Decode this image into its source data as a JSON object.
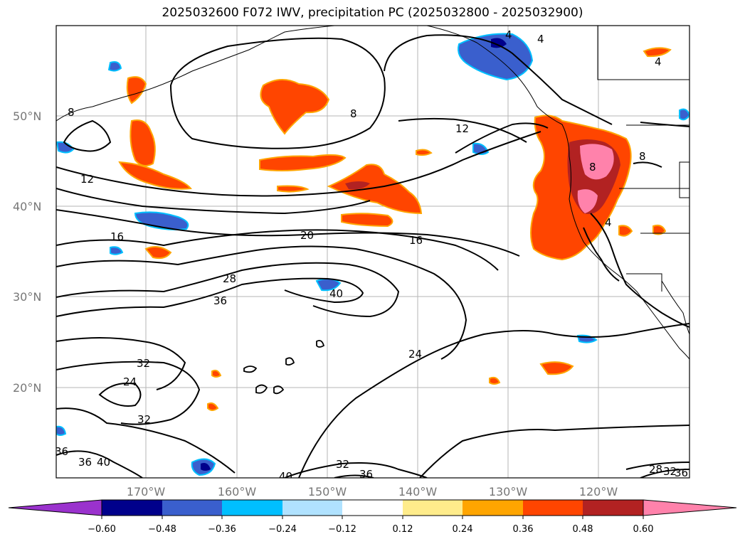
{
  "title": "2025032600 F072 IWV, precipitation PC (2025032800 - 2025032900)",
  "lat_labels": [
    {
      "text": "50°N",
      "lat": 50
    },
    {
      "text": "40°N",
      "lat": 40
    },
    {
      "text": "30°N",
      "lat": 30
    },
    {
      "text": "20°N",
      "lat": 20
    }
  ],
  "lon_labels": [
    {
      "text": "170°W",
      "lon": -170
    },
    {
      "text": "160°W",
      "lon": -160
    },
    {
      "text": "150°W",
      "lon": -150
    },
    {
      "text": "140°W",
      "lon": -140
    },
    {
      "text": "130°W",
      "lon": -130
    },
    {
      "text": "120°W",
      "lon": -120
    }
  ],
  "contour_labels": [
    "4",
    "4",
    "4",
    "8",
    "8",
    "8",
    "8",
    "12",
    "12",
    "16",
    "16",
    "20",
    "28",
    "36",
    "40",
    "24",
    "32",
    "24",
    "32",
    "36",
    "36",
    "40",
    "40",
    "32",
    "36",
    "28",
    "32",
    "36",
    "4"
  ],
  "colorbar": {
    "ticks": [
      "−0.60",
      "−0.48",
      "−0.36",
      "−0.24",
      "−0.12",
      "0.12",
      "0.24",
      "0.36",
      "0.48",
      "0.60"
    ],
    "colors": [
      "#9a32cd",
      "#00008b",
      "#3a5fcd",
      "#00bfff",
      "#b0e2ff",
      "#ffffff",
      "#ffec8b",
      "#ffa500",
      "#ff4500",
      "#b22222",
      "#ff82ab"
    ]
  }
}
